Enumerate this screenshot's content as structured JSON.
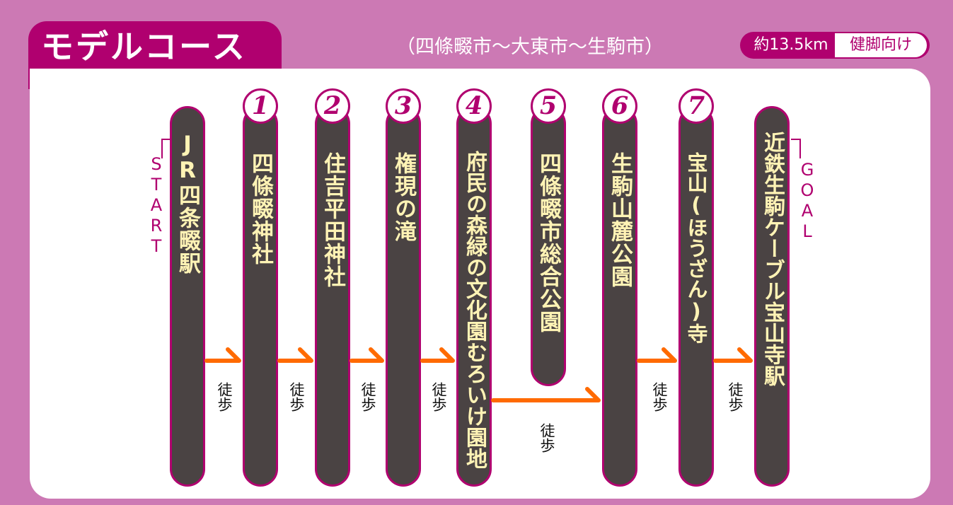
{
  "header": {
    "title": "モデルコース",
    "subtitle": "（四條畷市～大東市～生駒市）",
    "distance": "約13.5km",
    "level": "健脚向け"
  },
  "start_label": "START",
  "goal_label": "GOAL",
  "stops": [
    {
      "number": "",
      "name": "JR四条畷駅"
    },
    {
      "number": "1",
      "name": "四條畷神社"
    },
    {
      "number": "2",
      "name": "住吉平田神社"
    },
    {
      "number": "3",
      "name": "権現の滝"
    },
    {
      "number": "4",
      "name": "府民の森緑の文化園むろいけ園地"
    },
    {
      "number": "5",
      "name": "四條畷市総合公園"
    },
    {
      "number": "6",
      "name": "生駒山麓公園"
    },
    {
      "number": "7",
      "name": "宝山(ほうざん)寺"
    },
    {
      "number": "",
      "name": "近鉄生駒ケーブル宝山寺駅"
    }
  ],
  "walk_labels": [
    "徒歩",
    "徒歩",
    "徒歩",
    "徒歩",
    "徒歩",
    "徒歩",
    "徒歩"
  ],
  "colors": {
    "background": "#cc79b4",
    "accent": "#b0006f",
    "pillar": "#4a4343",
    "pillar_text": "#fff3b5",
    "arrow": "#ff6a00"
  }
}
